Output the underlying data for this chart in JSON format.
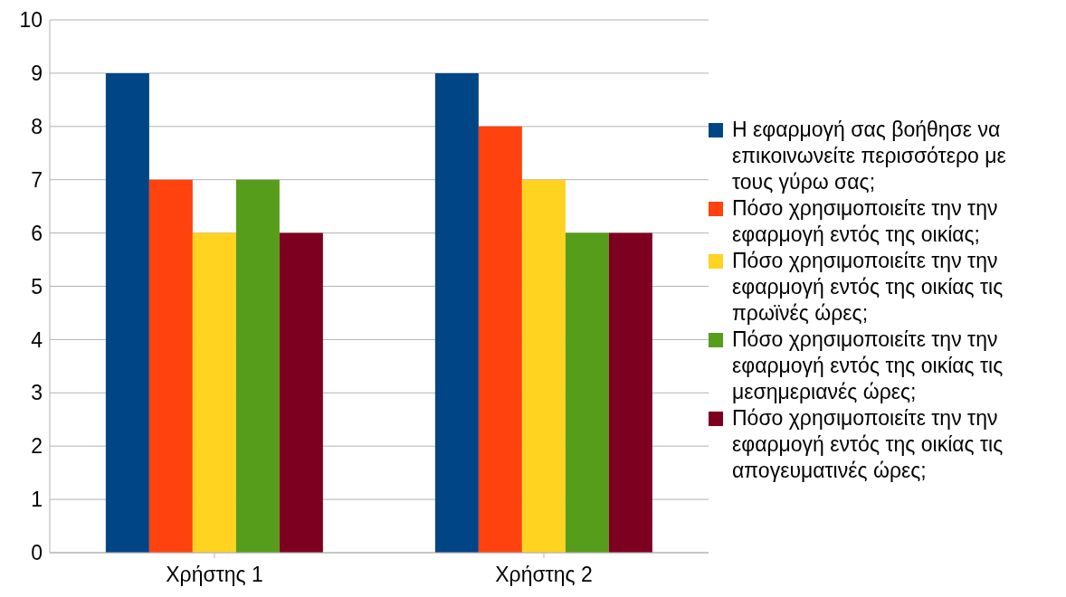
{
  "chart_data": {
    "type": "bar",
    "categories": [
      "Χρήστης 1",
      "Χρήστης 2"
    ],
    "series": [
      {
        "name": "Η εφαρμογή σας βοήθησε να επικοινωνείτε περισσότερο με τους γύρω σας;",
        "color": "#004586",
        "values": [
          9,
          9
        ]
      },
      {
        "name": "Πόσο χρησιμοποιείτε την την εφαρμογή εντός της οικίας;",
        "color": "#ff420e",
        "values": [
          7,
          8
        ]
      },
      {
        "name": "Πόσο χρησιμοποιείτε την την εφαρμογή εντός της οικίας τις πρωϊνές ώρες;",
        "color": "#ffd320",
        "values": [
          6,
          7
        ]
      },
      {
        "name": "Πόσο χρησιμοποιείτε την την εφαρμογή εντός της οικίας τις μεσημεριανές ώρες;",
        "color": "#579d1c",
        "values": [
          7,
          6
        ]
      },
      {
        "name": "Πόσο χρησιμοποιείτε την την εφαρμογή εντός της οικίας τις απογευματινές ώρες;",
        "color": "#7e0021",
        "values": [
          6,
          6
        ]
      }
    ],
    "ylim": [
      0,
      10
    ],
    "yticks": [
      0,
      1,
      2,
      3,
      4,
      5,
      6,
      7,
      8,
      9,
      10
    ],
    "grid": "y",
    "legend": "right"
  }
}
